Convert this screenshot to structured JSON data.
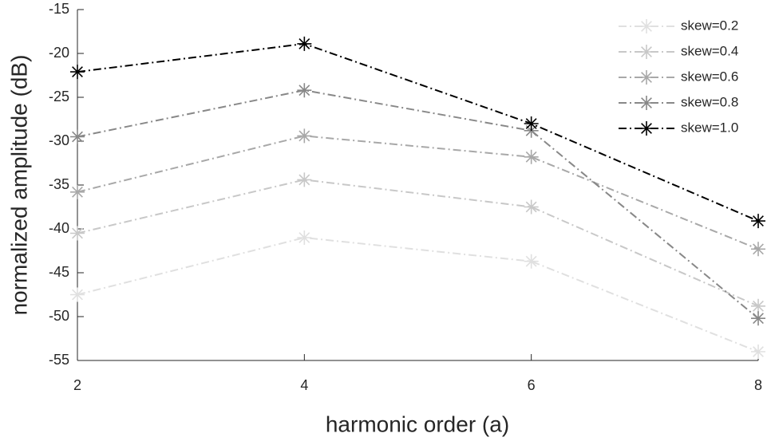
{
  "chart_data": {
    "type": "line",
    "x_label": "harmonic order (a)",
    "y_label": "normalized amplitude (dB)",
    "x": [
      2,
      4,
      6,
      8
    ],
    "xlim": [
      2,
      8
    ],
    "xticks": [
      2,
      4,
      6,
      8
    ],
    "ylim": [
      -55,
      -15
    ],
    "yticks": [
      -55,
      -50,
      -45,
      -40,
      -35,
      -30,
      -25,
      -20,
      -15
    ],
    "grid": false,
    "legend": "northeast",
    "series": [
      {
        "name": "skew=0.2",
        "color": "#e0e0e0",
        "values": [
          -47.5,
          -41,
          -43.7,
          -54
        ]
      },
      {
        "name": "skew=0.4",
        "color": "#c8c8c8",
        "values": [
          -40.5,
          -34.4,
          -37.5,
          -48.8
        ]
      },
      {
        "name": "skew=0.6",
        "color": "#a8a8a8",
        "values": [
          -35.8,
          -29.4,
          -31.8,
          -42.3
        ]
      },
      {
        "name": "skew=0.8",
        "color": "#888888",
        "values": [
          -29.5,
          -24.2,
          -28.8,
          -50.2
        ]
      },
      {
        "name": "skew=1.0",
        "color": "#000000",
        "values": [
          -22.1,
          -18.9,
          -28,
          -39.1
        ]
      }
    ]
  }
}
